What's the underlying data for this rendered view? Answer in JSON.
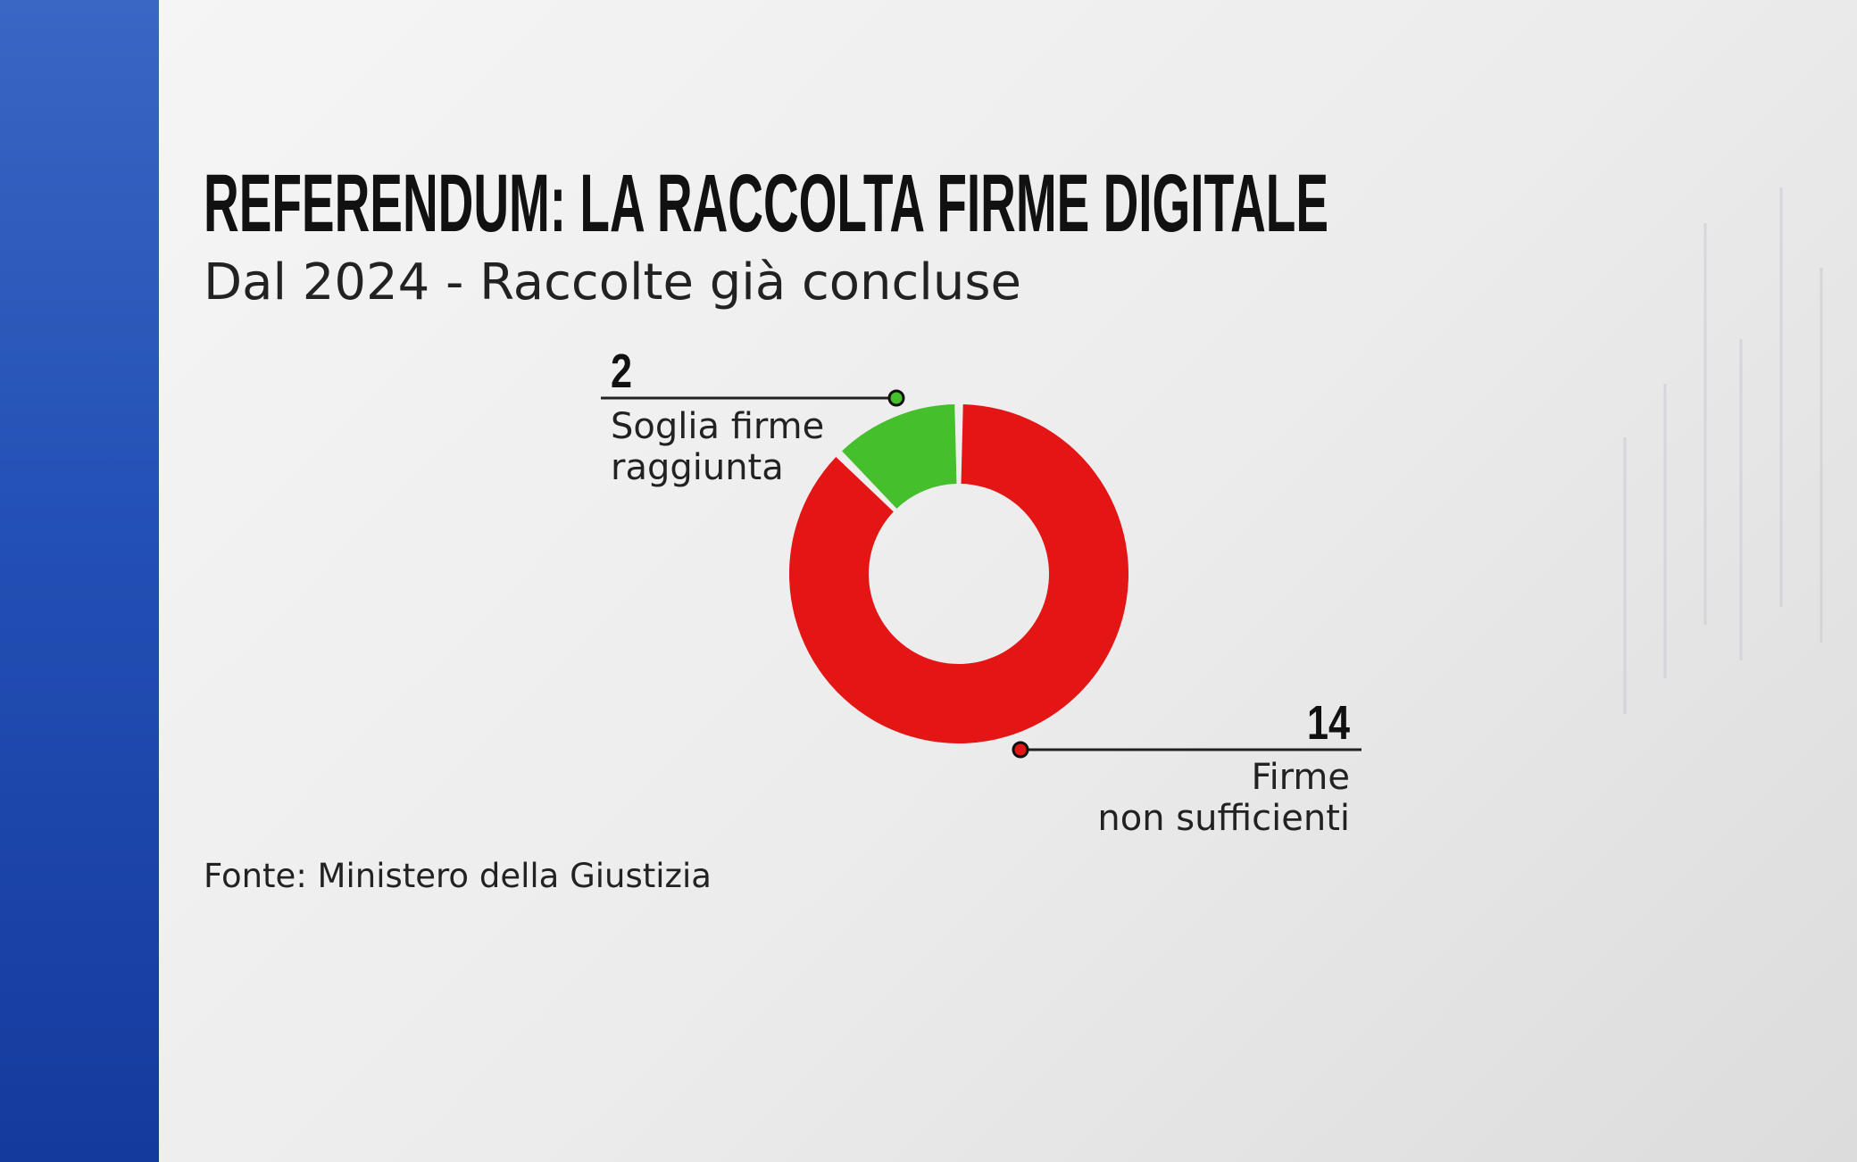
{
  "chart_data": {
    "type": "donut",
    "title": "REFERENDUM: LA RACCOLTA FIRME DIGITALE",
    "subtitle": "Dal 2024 - Raccolte già concluse",
    "source": "Fonte: Ministero della Giustizia",
    "categories": [
      "Soglia firme\nraggiunta",
      "Firme\nnon sufficienti"
    ],
    "values": [
      2,
      14
    ],
    "colors": [
      "#45bf2b",
      "#e41515"
    ]
  }
}
